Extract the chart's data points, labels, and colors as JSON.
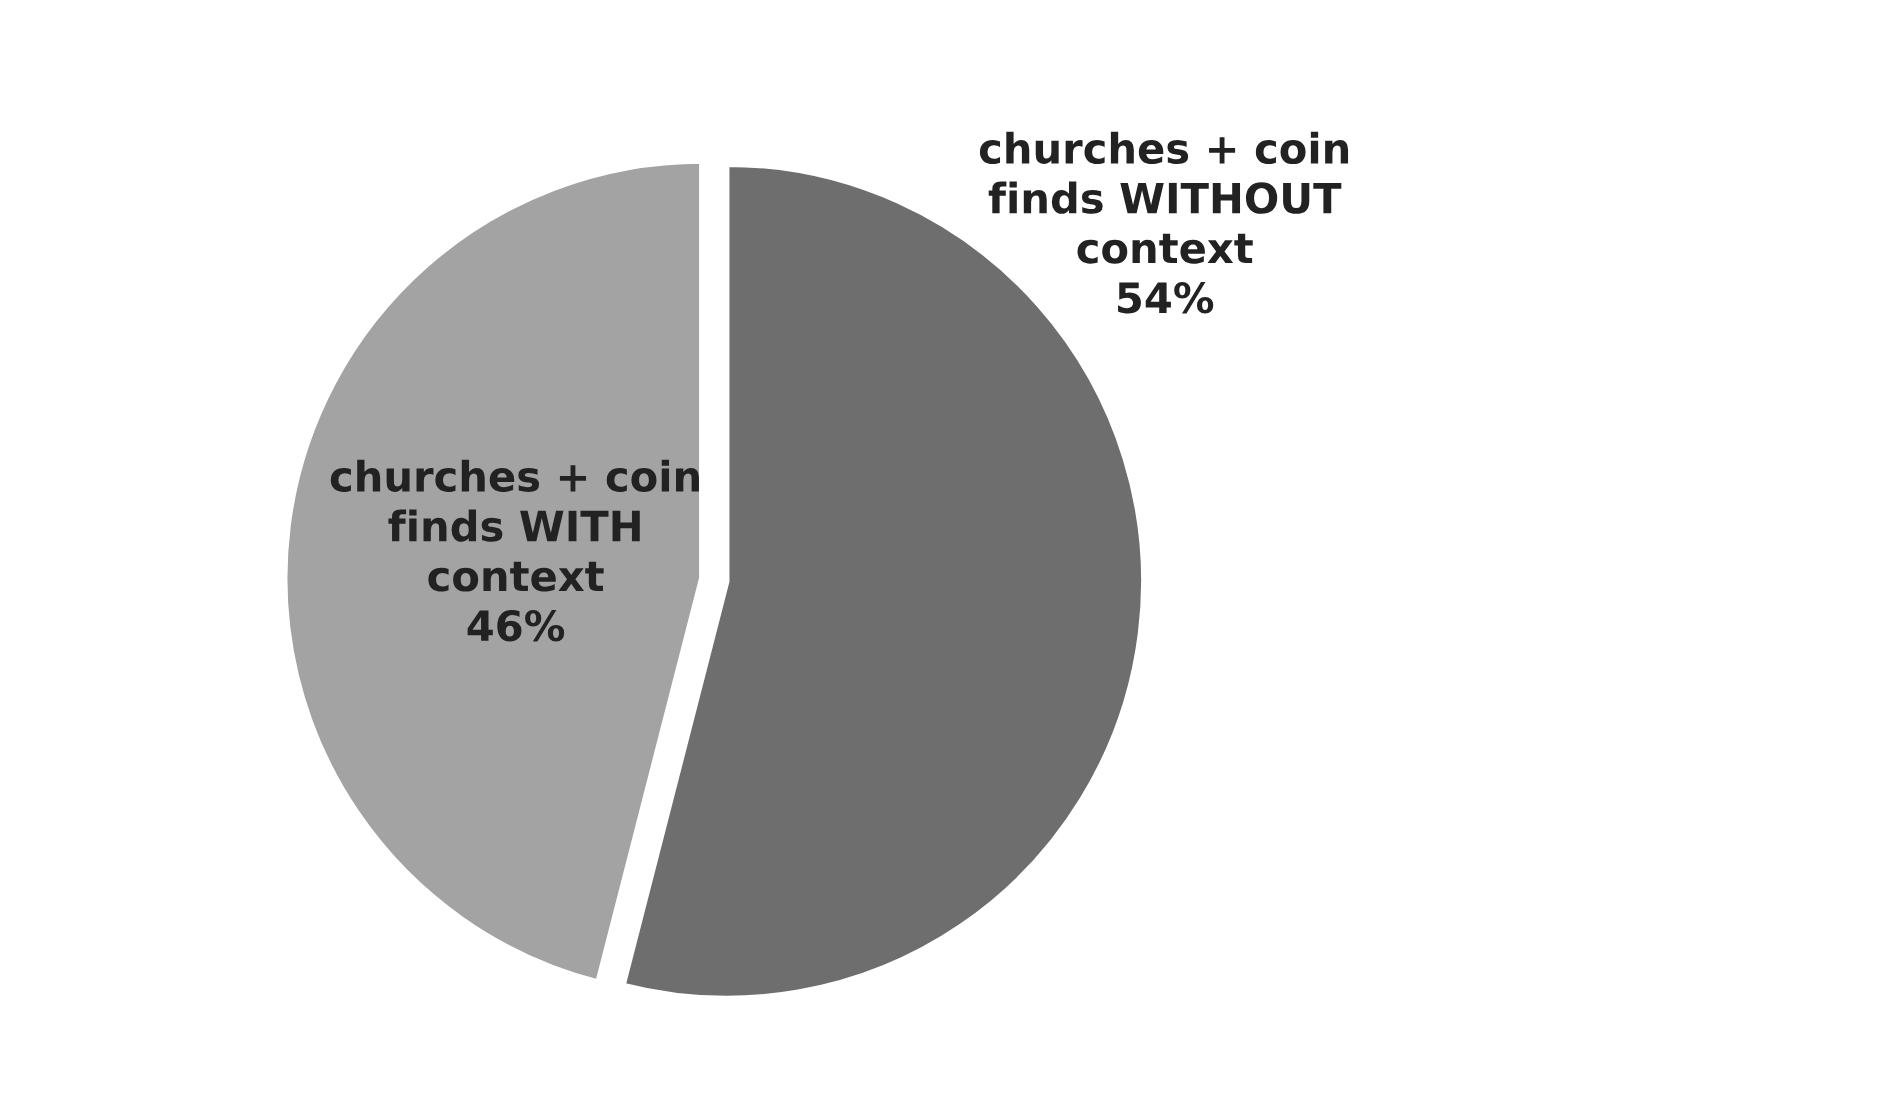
{
  "chart_data": {
    "type": "pie",
    "categories": [
      "churches + coin\nfinds WITHOUT\ncontext",
      "churches + coin\nfinds WITH\ncontext"
    ],
    "values": [
      54,
      46
    ],
    "value_labels": [
      "54%",
      "46%"
    ],
    "colors": [
      "#6e6e6e",
      "#a3a3a3"
    ]
  }
}
